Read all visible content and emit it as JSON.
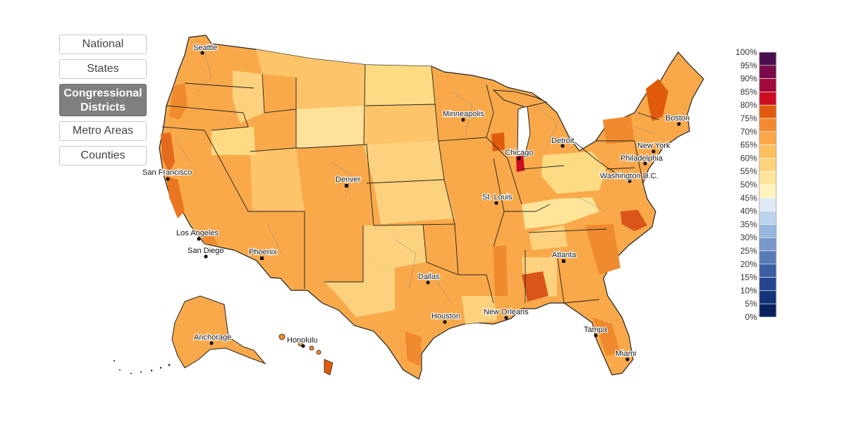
{
  "views": {
    "items": [
      {
        "label": "National",
        "active": false
      },
      {
        "label": "States",
        "active": false
      },
      {
        "label": "Congressional Districts",
        "active": true
      },
      {
        "label": "Metro Areas",
        "active": false
      },
      {
        "label": "Counties",
        "active": false
      }
    ]
  },
  "cities": [
    {
      "name": "Seattle"
    },
    {
      "name": "San Francisco"
    },
    {
      "name": "Los Angeles"
    },
    {
      "name": "San Diego"
    },
    {
      "name": "Phoenix"
    },
    {
      "name": "Denver"
    },
    {
      "name": "Dallas"
    },
    {
      "name": "Houston"
    },
    {
      "name": "Minneapolis"
    },
    {
      "name": "Chicago"
    },
    {
      "name": "St. Louis"
    },
    {
      "name": "Detroit"
    },
    {
      "name": "New Orleans"
    },
    {
      "name": "Atlanta"
    },
    {
      "name": "Tampa"
    },
    {
      "name": "Miami"
    },
    {
      "name": "Washington D.C."
    },
    {
      "name": "Philadelphia"
    },
    {
      "name": "New York"
    },
    {
      "name": "Boston"
    },
    {
      "name": "Anchorage"
    },
    {
      "name": "Honolulu"
    }
  ],
  "legend": {
    "labels": [
      "100%",
      "95%",
      "90%",
      "85%",
      "80%",
      "75%",
      "70%",
      "65%",
      "60%",
      "55%",
      "50%",
      "45%",
      "40%",
      "35%",
      "30%",
      "25%",
      "20%",
      "15%",
      "10%",
      "5%",
      "0%"
    ],
    "colors": [
      "#4a0f4f",
      "#7b0b4a",
      "#a10a3c",
      "#cc0c22",
      "#e05c0c",
      "#f4892f",
      "#f9a748",
      "#fbbf5e",
      "#fdd27a",
      "#fee59a",
      "#fff4bd",
      "#dde9f7",
      "#bcd2ec",
      "#98b6de",
      "#7897cb",
      "#587bb8",
      "#3c5fa4",
      "#25468f",
      "#143278",
      "#0a215f"
    ]
  },
  "colors": {
    "land_base": "#f9a94a",
    "land_dark": "#f08a2e",
    "land_light": "#fdd27e",
    "land_pale": "#fee59a",
    "hot": "#d9551a",
    "very_hot": "#cc0c22",
    "border": "#222222"
  }
}
